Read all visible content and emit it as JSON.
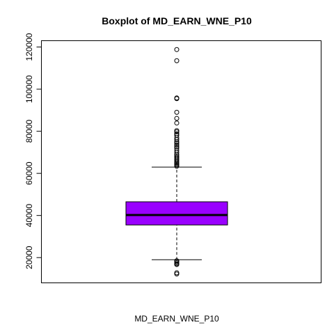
{
  "chart_data": {
    "type": "boxplot",
    "title": "Boxplot of MD_EARN_WNE_P10",
    "xlabel": "MD_EARN_WNE_P10",
    "ylabel": "",
    "ylim": [
      8000,
      123000
    ],
    "yticks": [
      20000,
      40000,
      60000,
      80000,
      100000,
      120000
    ],
    "ytick_labels": [
      "20000",
      "40000",
      "60000",
      "80000",
      "100000",
      "120000"
    ],
    "grid": false,
    "box_color": "#9900FF",
    "box": {
      "whisker_low": 19000,
      "q1": 35500,
      "median": 40200,
      "q3": 46500,
      "whisker_high": 63000
    },
    "outliers": [
      12200,
      12800,
      16700,
      17100,
      17600,
      18100,
      18500,
      63400,
      64000,
      64500,
      65000,
      65600,
      66300,
      67000,
      67600,
      68300,
      69000,
      70000,
      71000,
      72000,
      72700,
      73500,
      74300,
      75000,
      76000,
      76900,
      78000,
      78800,
      79700,
      80300,
      83900,
      86100,
      89000,
      95500,
      95800,
      113500,
      118800
    ]
  }
}
